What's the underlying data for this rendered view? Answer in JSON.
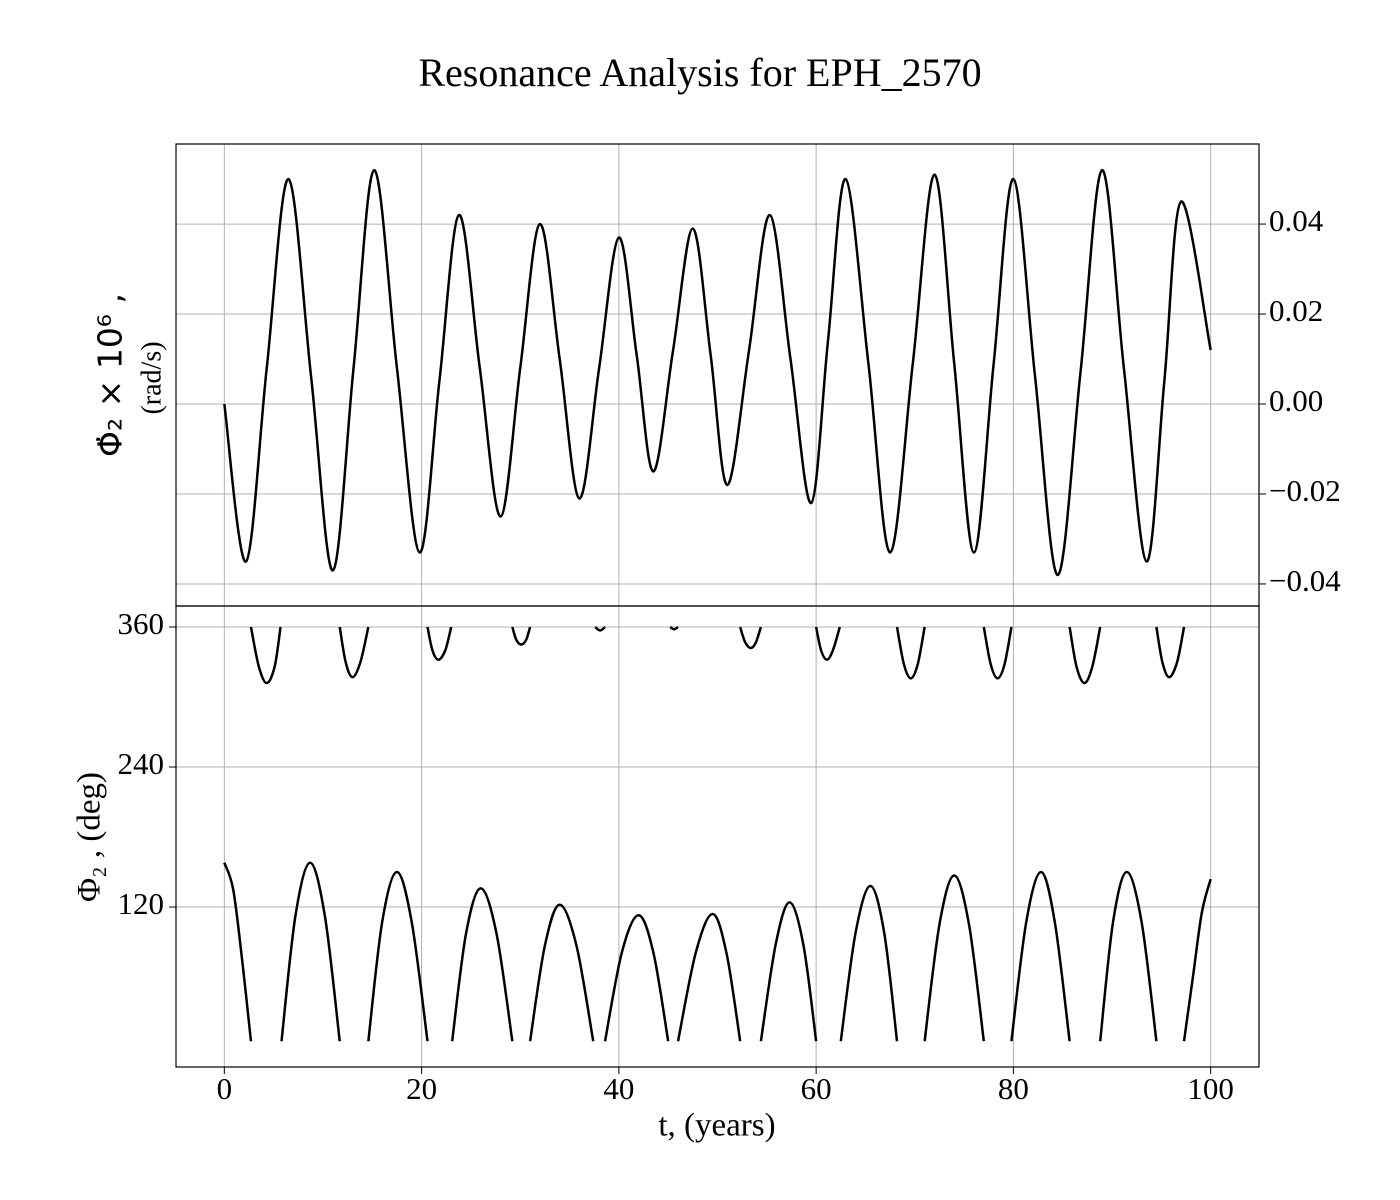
{
  "chart_data": [
    {
      "type": "line",
      "title": "Resonance Analysis for EPH_2570",
      "y_label": "Φ̇₂ × 10⁶ ,",
      "y_label_unit": "(rad/s)",
      "y_axis_side": "right",
      "grid": true,
      "xlim": [
        -4.9,
        104.9
      ],
      "xticks": [
        0,
        20,
        40,
        60,
        80,
        100
      ],
      "ylim": [
        -0.0449,
        0.0578
      ],
      "yticks": [
        {
          "value": -0.04,
          "label": "−0.04"
        },
        {
          "value": -0.02,
          "label": "−0.02"
        },
        {
          "value": 0,
          "label": "0.00"
        },
        0.02,
        0.04
      ],
      "x": [
        0,
        2.2,
        4.3,
        6.5,
        8.8,
        11.0,
        13.1,
        15.2,
        17.5,
        19.8,
        21.8,
        23.8,
        25.9,
        28.0,
        30.0,
        32.0,
        34.0,
        36.0,
        38.0,
        40.0,
        41.8,
        43.5,
        45.5,
        47.5,
        49.3,
        51.0,
        53.2,
        55.3,
        57.4,
        59.5,
        61.2,
        63.0,
        65.3,
        67.5,
        69.8,
        72.0,
        74.0,
        76.0,
        78.0,
        80.0,
        82.2,
        84.5,
        86.8,
        89.0,
        91.2,
        93.5,
        95.3,
        97.0,
        100.0
      ],
      "series": [
        {
          "color": "#000000",
          "values": [
            0.0,
            -0.035,
            0.008,
            0.05,
            0.006,
            -0.037,
            0.008,
            0.052,
            0.008,
            -0.033,
            0.005,
            0.042,
            0.008,
            -0.025,
            0.008,
            0.04,
            0.01,
            -0.021,
            0.008,
            0.037,
            0.011,
            -0.015,
            0.012,
            0.039,
            0.011,
            -0.018,
            0.012,
            0.042,
            0.01,
            -0.022,
            0.014,
            0.05,
            0.009,
            -0.033,
            0.009,
            0.051,
            0.009,
            -0.033,
            0.009,
            0.05,
            0.006,
            -0.038,
            0.007,
            0.052,
            0.008,
            -0.035,
            0.005,
            0.045,
            0.012
          ]
        }
      ]
    },
    {
      "type": "line",
      "x_label": "t, (years)",
      "y_label": "Φ₂ , (deg)",
      "y_axis_side": "left",
      "grid": true,
      "xlim": [
        -4.9,
        104.9
      ],
      "xticks": [
        0,
        20,
        40,
        60,
        80,
        100
      ],
      "ylim": [
        -17.1,
        378
      ],
      "yticks": [
        120,
        240,
        360
      ],
      "x": [
        0,
        0.9,
        1.8,
        2.7,
        2.7,
        2.7,
        3.5,
        4.3,
        5.1,
        5.7,
        5.75,
        5.8,
        7.2,
        8.7,
        10.2,
        11.7,
        11.7,
        11.7,
        12.3,
        13.0,
        13.8,
        14.6,
        14.6,
        14.6,
        16.0,
        17.5,
        19.0,
        20.6,
        20.6,
        20.6,
        21.1,
        21.7,
        22.4,
        23.0,
        23.05,
        23.1,
        24.5,
        26.0,
        27.6,
        29.2,
        29.2,
        29.2,
        29.6,
        30.1,
        30.6,
        31.0,
        31.0,
        31.0,
        32.5,
        34.0,
        35.7,
        37.4,
        37.5,
        37.6,
        38.1,
        38.6,
        38.6,
        38.6,
        40.3,
        42.0,
        43.5,
        45.0,
        45.1,
        45.2,
        45.6,
        46.0,
        46.0,
        46.0,
        47.8,
        49.5,
        50.9,
        52.3,
        52.3,
        52.3,
        52.8,
        53.4,
        53.9,
        54.4,
        54.4,
        54.4,
        55.9,
        57.3,
        58.7,
        60.0,
        60.0,
        60.0,
        60.5,
        61.1,
        61.7,
        62.4,
        62.45,
        62.5,
        64.0,
        65.5,
        66.9,
        68.2,
        68.2,
        68.2,
        68.9,
        69.6,
        70.3,
        71.0,
        71.0,
        71.0,
        72.5,
        74.0,
        75.5,
        77.0,
        77.0,
        77.0,
        77.7,
        78.4,
        79.1,
        79.8,
        79.8,
        79.8,
        81.3,
        82.8,
        84.2,
        85.7,
        85.7,
        85.7,
        86.4,
        87.2,
        88.0,
        88.8,
        88.8,
        88.8,
        90.1,
        91.5,
        93.0,
        94.5,
        94.5,
        94.5,
        95.1,
        95.8,
        96.6,
        97.3,
        97.3,
        97.3,
        98.2,
        99.1,
        100.0
      ],
      "series": [
        {
          "color": "#000000",
          "values": [
            158,
            135,
            75,
            5,
            null,
            360,
            326,
            312,
            326,
            360,
            null,
            5,
            112,
            158,
            112,
            5,
            null,
            360,
            330,
            317,
            330,
            360,
            null,
            5,
            107,
            150,
            107,
            5,
            null,
            360,
            340,
            332,
            340,
            360,
            null,
            5,
            97,
            136,
            97,
            5,
            null,
            360,
            349,
            345,
            349,
            360,
            null,
            5,
            87,
            122,
            87,
            5,
            null,
            360,
            357,
            360,
            null,
            5,
            81,
            113,
            81,
            5,
            null,
            360,
            358,
            360,
            null,
            5,
            81,
            114,
            81,
            5,
            null,
            360,
            347,
            342,
            347,
            360,
            null,
            5,
            88,
            124,
            88,
            5,
            null,
            360,
            340,
            332,
            340,
            360,
            null,
            5,
            98,
            138,
            98,
            5,
            null,
            360,
            328,
            316,
            328,
            360,
            null,
            5,
            105,
            147,
            105,
            5,
            null,
            360,
            328,
            316,
            328,
            360,
            null,
            5,
            107,
            150,
            107,
            5,
            null,
            360,
            326,
            312,
            326,
            360,
            null,
            5,
            107,
            150,
            107,
            5,
            null,
            360,
            330,
            317,
            330,
            360,
            null,
            5,
            60,
            115,
            144
          ]
        }
      ]
    }
  ]
}
